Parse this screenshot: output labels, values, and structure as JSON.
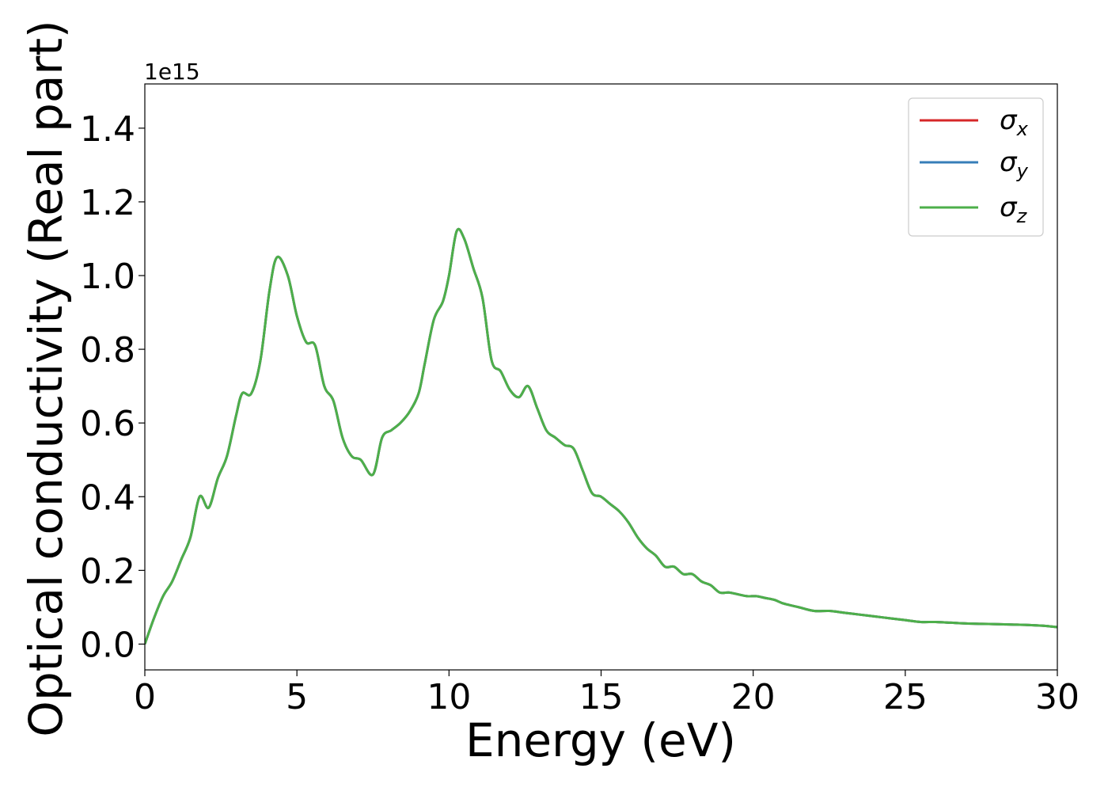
{
  "chart_data": {
    "type": "line",
    "title": "",
    "xlabel": "Energy (eV)",
    "ylabel": "Optical conductivity (Real part)",
    "y_offset_label": "1e15",
    "xlim": [
      0,
      30
    ],
    "ylim": [
      -0.07,
      1.52
    ],
    "x_ticks": [
      0,
      5,
      10,
      15,
      20,
      25,
      30
    ],
    "x_tick_labels": [
      "0",
      "5",
      "10",
      "15",
      "20",
      "25",
      "30"
    ],
    "y_ticks": [
      0.0,
      0.2,
      0.4,
      0.6,
      0.8,
      1.0,
      1.2,
      1.4
    ],
    "y_tick_labels": [
      "0.0",
      "0.2",
      "0.4",
      "0.6",
      "0.8",
      "1.0",
      "1.2",
      "1.4"
    ],
    "grid": false,
    "legend_position": "top-right",
    "x": [
      0,
      0.3,
      0.6,
      0.9,
      1.2,
      1.5,
      1.8,
      2.1,
      2.4,
      2.7,
      3.0,
      3.2,
      3.5,
      3.8,
      4.1,
      4.35,
      4.7,
      5.0,
      5.3,
      5.6,
      5.9,
      6.2,
      6.5,
      6.8,
      7.1,
      7.5,
      7.8,
      8.1,
      8.4,
      8.7,
      9.0,
      9.2,
      9.5,
      9.8,
      10.0,
      10.25,
      10.5,
      10.8,
      11.1,
      11.4,
      11.7,
      12.0,
      12.3,
      12.6,
      12.9,
      13.2,
      13.5,
      13.8,
      14.1,
      14.4,
      14.7,
      15.0,
      15.3,
      15.6,
      15.9,
      16.2,
      16.5,
      16.8,
      17.1,
      17.4,
      17.7,
      18.0,
      18.3,
      18.6,
      18.9,
      19.2,
      19.5,
      19.8,
      20.1,
      20.4,
      20.7,
      21.0,
      21.5,
      22.0,
      22.5,
      23.0,
      23.5,
      24.0,
      24.5,
      25.0,
      25.5,
      26.0,
      26.5,
      27.0,
      27.5,
      28.0,
      28.5,
      29.0,
      29.5,
      30.0
    ],
    "series": [
      {
        "name": "σx",
        "color": "#d62728",
        "values": [
          0.0,
          0.07,
          0.13,
          0.17,
          0.23,
          0.29,
          0.4,
          0.37,
          0.45,
          0.51,
          0.62,
          0.68,
          0.68,
          0.77,
          0.96,
          1.05,
          1.0,
          0.89,
          0.82,
          0.81,
          0.7,
          0.66,
          0.56,
          0.51,
          0.5,
          0.46,
          0.56,
          0.58,
          0.6,
          0.63,
          0.68,
          0.76,
          0.88,
          0.93,
          1.0,
          1.12,
          1.1,
          1.02,
          0.94,
          0.77,
          0.74,
          0.69,
          0.67,
          0.7,
          0.64,
          0.58,
          0.56,
          0.54,
          0.53,
          0.47,
          0.41,
          0.4,
          0.38,
          0.36,
          0.33,
          0.29,
          0.26,
          0.24,
          0.21,
          0.21,
          0.19,
          0.19,
          0.17,
          0.16,
          0.14,
          0.14,
          0.135,
          0.13,
          0.13,
          0.125,
          0.12,
          0.11,
          0.1,
          0.09,
          0.09,
          0.085,
          0.08,
          0.075,
          0.07,
          0.065,
          0.06,
          0.06,
          0.058,
          0.056,
          0.055,
          0.054,
          0.053,
          0.052,
          0.05,
          0.046
        ]
      },
      {
        "name": "σy",
        "color": "#377eb8",
        "values": [
          0.0,
          0.07,
          0.13,
          0.17,
          0.23,
          0.29,
          0.4,
          0.37,
          0.45,
          0.51,
          0.62,
          0.68,
          0.68,
          0.77,
          0.96,
          1.05,
          1.0,
          0.89,
          0.82,
          0.81,
          0.7,
          0.66,
          0.56,
          0.51,
          0.5,
          0.46,
          0.56,
          0.58,
          0.6,
          0.63,
          0.68,
          0.76,
          0.88,
          0.93,
          1.0,
          1.12,
          1.1,
          1.02,
          0.94,
          0.77,
          0.74,
          0.69,
          0.67,
          0.7,
          0.64,
          0.58,
          0.56,
          0.54,
          0.53,
          0.47,
          0.41,
          0.4,
          0.38,
          0.36,
          0.33,
          0.29,
          0.26,
          0.24,
          0.21,
          0.21,
          0.19,
          0.19,
          0.17,
          0.16,
          0.14,
          0.14,
          0.135,
          0.13,
          0.13,
          0.125,
          0.12,
          0.11,
          0.1,
          0.09,
          0.09,
          0.085,
          0.08,
          0.075,
          0.07,
          0.065,
          0.06,
          0.06,
          0.058,
          0.056,
          0.055,
          0.054,
          0.053,
          0.052,
          0.05,
          0.046
        ]
      },
      {
        "name": "σz",
        "color": "#4daf4a",
        "values": [
          0.0,
          0.07,
          0.13,
          0.17,
          0.23,
          0.29,
          0.4,
          0.37,
          0.45,
          0.51,
          0.62,
          0.68,
          0.68,
          0.77,
          0.96,
          1.05,
          1.0,
          0.89,
          0.82,
          0.81,
          0.7,
          0.66,
          0.56,
          0.51,
          0.5,
          0.46,
          0.56,
          0.58,
          0.6,
          0.63,
          0.68,
          0.76,
          0.88,
          0.93,
          1.0,
          1.12,
          1.1,
          1.02,
          0.94,
          0.77,
          0.74,
          0.69,
          0.67,
          0.7,
          0.64,
          0.58,
          0.56,
          0.54,
          0.53,
          0.47,
          0.41,
          0.4,
          0.38,
          0.36,
          0.33,
          0.29,
          0.26,
          0.24,
          0.21,
          0.21,
          0.19,
          0.19,
          0.17,
          0.16,
          0.14,
          0.14,
          0.135,
          0.13,
          0.13,
          0.125,
          0.12,
          0.11,
          0.1,
          0.09,
          0.09,
          0.085,
          0.08,
          0.075,
          0.07,
          0.065,
          0.06,
          0.06,
          0.058,
          0.056,
          0.055,
          0.054,
          0.053,
          0.052,
          0.05,
          0.046
        ]
      }
    ],
    "legend": [
      {
        "symbol": "σ",
        "sub": "x",
        "color": "#d62728"
      },
      {
        "symbol": "σ",
        "sub": "y",
        "color": "#377eb8"
      },
      {
        "symbol": "σ",
        "sub": "z",
        "color": "#4daf4a"
      }
    ]
  }
}
